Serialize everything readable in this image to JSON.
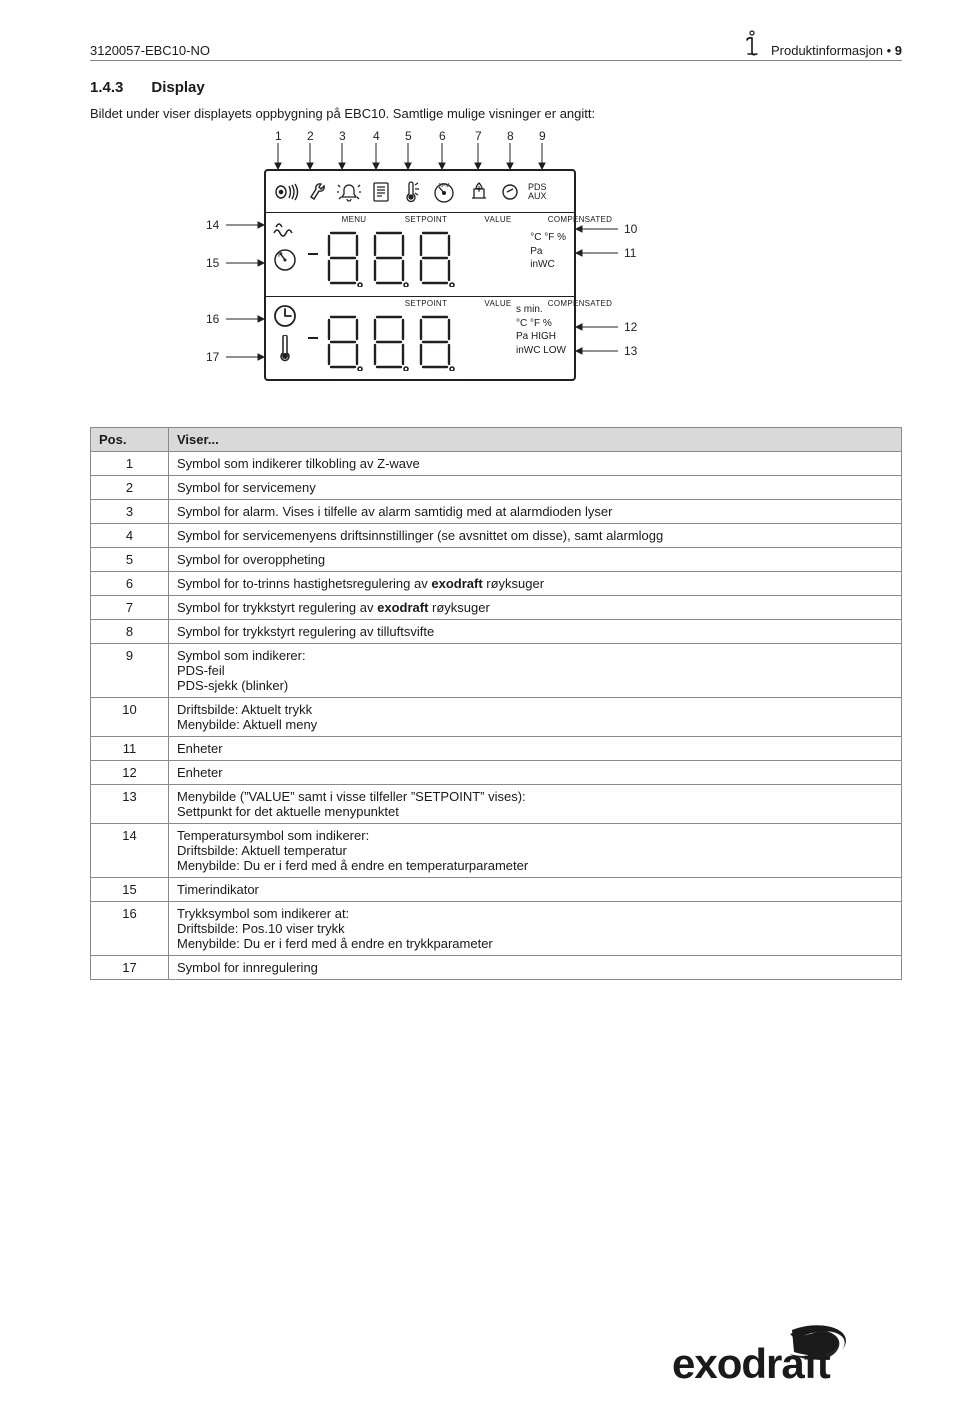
{
  "header": {
    "doc_id": "3120057-EBC10-NO",
    "section_label": "Produktinformasjon",
    "page_number": "9"
  },
  "section": {
    "number": "1.4.3",
    "title": "Display"
  },
  "intro": "Bildet under viser displayets oppbygning på EBC10. Samtlige mulige visninger er angitt:",
  "diagram": {
    "callouts_top": [
      "1",
      "2",
      "3",
      "4",
      "5",
      "6",
      "7",
      "8",
      "9"
    ],
    "callouts_left": [
      "14",
      "15",
      "16",
      "17"
    ],
    "callouts_right": [
      "10",
      "11",
      "12",
      "13"
    ],
    "pds": "PDS",
    "aux": "AUX",
    "rpm": "RPM",
    "row1": {
      "labels": [
        "MENU",
        "SETPOINT",
        "VALUE",
        "COMPENSATED"
      ],
      "units_line1": "°C   °F   %",
      "units_line2": "Pa",
      "units_line3": "inWC"
    },
    "row2": {
      "labels": [
        "",
        "SETPOINT",
        "VALUE",
        "COMPENSATED"
      ],
      "units_line0": "s    min.",
      "units_line1": "°C   °F   %",
      "units_line2": "Pa       HIGH",
      "units_line3": "inWC   LOW"
    },
    "colors": {
      "stroke": "#231f20",
      "label_top": "#231f20"
    }
  },
  "table": {
    "head_pos": "Pos.",
    "head_desc": "Viser...",
    "rows": [
      {
        "pos": "1",
        "desc": "Symbol som indikerer tilkobling av Z-wave"
      },
      {
        "pos": "2",
        "desc": "Symbol for servicemeny"
      },
      {
        "pos": "3",
        "desc": "Symbol for alarm. Vises i tilfelle av alarm samtidig med at alarmdioden lyser"
      },
      {
        "pos": "4",
        "desc": "Symbol for servicemenyens driftsinnstillinger (se avsnittet om disse), samt alarmlogg"
      },
      {
        "pos": "5",
        "desc": "Symbol for overoppheting"
      },
      {
        "pos": "6",
        "desc": "Symbol for to-trinns hastighetsregulering av <b>exodraft</b> røyksuger"
      },
      {
        "pos": "7",
        "desc": "Symbol for trykkstyrt regulering av <b>exodraft</b> røyksuger"
      },
      {
        "pos": "8",
        "desc": "Symbol for trykkstyrt regulering av tilluftsvifte"
      },
      {
        "pos": "9",
        "desc": "Symbol som indikerer:<br>PDS-feil<br>PDS-sjekk (blinker)"
      },
      {
        "pos": "10",
        "desc": "Driftsbilde: Aktuelt trykk<br>Menybilde: Aktuell meny"
      },
      {
        "pos": "11",
        "desc": "Enheter"
      },
      {
        "pos": "12",
        "desc": "Enheter"
      },
      {
        "pos": "13",
        "desc": "Menybilde (&rdquo;VALUE&rdquo; samt i visse tilfeller &rdquo;SETPOINT&rdquo; vises):<br>Settpunkt for det aktuelle menypunktet"
      },
      {
        "pos": "14",
        "desc": "Temperatursymbol som indikerer:<br>Driftsbilde: Aktuell temperatur<br>Menybilde: Du er i ferd med å endre en temperaturparameter"
      },
      {
        "pos": "15",
        "desc": "Timerindikator"
      },
      {
        "pos": "16",
        "desc": "Trykksymbol som indikerer at:<br>Driftsbilde: Pos.10 viser trykk<br>Menybilde: Du er i ferd med å endre en trykkparameter"
      },
      {
        "pos": "17",
        "desc": "Symbol for innregulering"
      }
    ]
  },
  "logo_text": "exodraft"
}
